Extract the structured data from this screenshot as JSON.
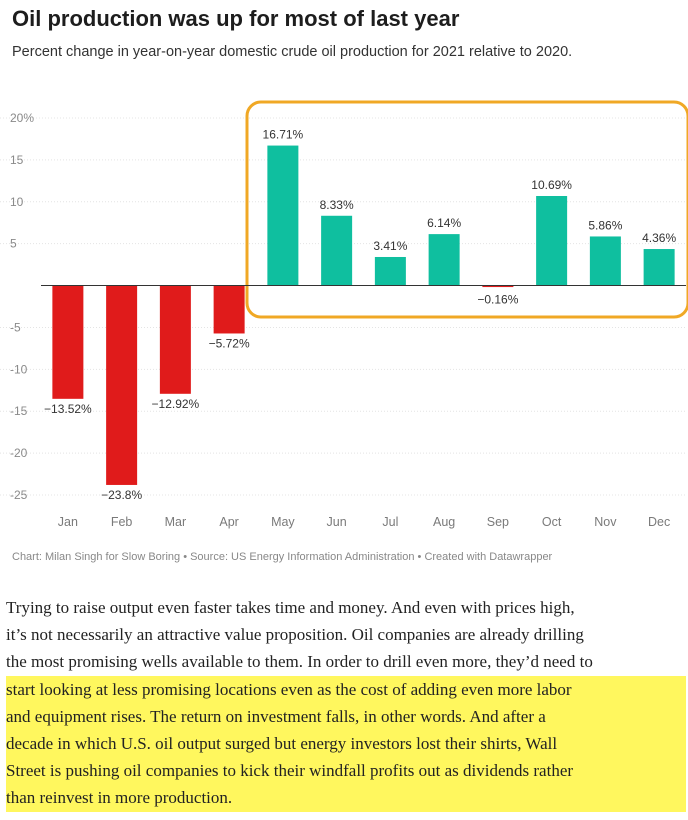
{
  "title": "Oil production was up for most of last year",
  "subtitle": "Percent change in year-on-year domestic crude oil production for 2021 relative to 2020.",
  "credit": "Chart: Milan Singh for Slow Boring • Source: US Energy Information Administration • Created with Datawrapper",
  "colors": {
    "negative": "#e01b1b",
    "positive": "#0fbf9f",
    "highlight_box": "#f0a825",
    "highlight_text": "#fff75e"
  },
  "chart_data": {
    "type": "bar",
    "categories": [
      "Jan",
      "Feb",
      "Mar",
      "Apr",
      "May",
      "Jun",
      "Jul",
      "Aug",
      "Sep",
      "Oct",
      "Nov",
      "Dec"
    ],
    "values": [
      -13.52,
      -23.8,
      -12.92,
      -5.72,
      16.71,
      8.33,
      3.41,
      6.14,
      -0.16,
      10.69,
      5.86,
      4.36
    ],
    "value_labels": [
      "−13.52%",
      "−23.8%",
      "−12.92%",
      "−5.72%",
      "16.71%",
      "8.33%",
      "3.41%",
      "6.14%",
      "−0.16%",
      "10.69%",
      "5.86%",
      "4.36%"
    ],
    "ylim": [
      -25,
      20
    ],
    "y_ticks": [
      20,
      15,
      10,
      5,
      0,
      -5,
      -10,
      -15,
      -20,
      -25
    ],
    "y_tick_labels": [
      "20%",
      "15",
      "10",
      "5",
      "",
      "-5",
      "-10",
      "-15",
      "-20",
      "-25"
    ],
    "grid": true,
    "highlight_range": [
      "May",
      "Dec"
    ],
    "title": "Oil production was up for most of last year",
    "xlabel": "",
    "ylabel": ""
  },
  "body_lines": [
    "Trying to raise output even faster takes time and money. And even with prices high,",
    "it’s not necessarily an attractive value proposition. Oil companies are already drilling",
    "the most promising wells available to them. In order to drill even more, they’d need to",
    "start looking at less promising locations even as the cost of adding even more labor",
    "and equipment rises. The return on investment falls, in other words. And after a",
    "decade in which U.S. oil output surged but energy investors lost their shirts, Wall",
    "Street is pushing oil companies to kick their windfall profits out as dividends rather",
    "than reinvest in more production."
  ]
}
